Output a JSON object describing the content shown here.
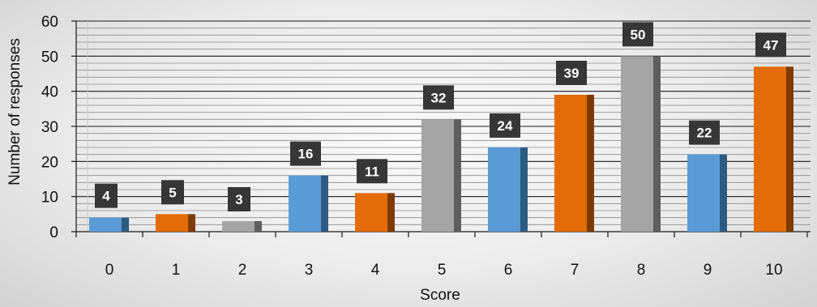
{
  "chart_data": {
    "type": "bar",
    "title": "",
    "xlabel": "Score",
    "ylabel": "Number of responses",
    "categories": [
      "0",
      "1",
      "2",
      "3",
      "4",
      "5",
      "6",
      "7",
      "8",
      "9",
      "10"
    ],
    "values": [
      4,
      5,
      3,
      16,
      11,
      32,
      24,
      39,
      50,
      22,
      47
    ],
    "ylim": [
      0,
      60
    ],
    "yticks": [
      "0",
      "10",
      "20",
      "30",
      "40",
      "50",
      "60"
    ],
    "grid": true,
    "legend": "none",
    "bar_colors": [
      "#5b9bd5",
      "#e36c09",
      "#a5a5a5",
      "#5b9bd5",
      "#e36c09",
      "#a5a5a5",
      "#5b9bd5",
      "#e36c09",
      "#a5a5a5",
      "#5b9bd5",
      "#e36c09"
    ],
    "bar_side_colors": [
      "#2d5a80",
      "#7f3a04",
      "#5e5e5e",
      "#2d5a80",
      "#7f3a04",
      "#5e5e5e",
      "#2d5a80",
      "#7f3a04",
      "#5e5e5e",
      "#2d5a80",
      "#7f3a04"
    ],
    "data_label_background": "#3a3a3a",
    "data_label_color": "#ffffff"
  }
}
